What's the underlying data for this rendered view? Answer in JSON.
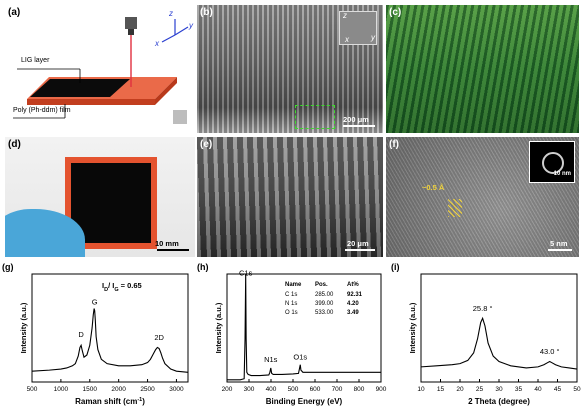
{
  "figure": {
    "panels": {
      "a": {
        "label": "(a)",
        "lig_label": "LIG layer",
        "film_label": "Poly (Ph-ddm) film",
        "axes": {
          "z": "z",
          "y": "y",
          "x": "x"
        },
        "colors": {
          "film": "#e4532f",
          "lig": "#0b0b0b",
          "laser": "#e0303f"
        }
      },
      "b": {
        "label": "(b)",
        "scale": "200 μm",
        "inset_axes": {
          "z": "z",
          "y": "y",
          "x": "x"
        }
      },
      "c": {
        "label": "(c)"
      },
      "d": {
        "label": "(d)",
        "scale": "10 mm"
      },
      "e": {
        "label": "(e)",
        "scale": "20 μm"
      },
      "f": {
        "label": "(f)",
        "scale": "5 nm",
        "inset_scale": "10 nm",
        "spacing": "~0.5 Å"
      }
    }
  },
  "chart_data": [
    {
      "panel": "g",
      "label": "(g)",
      "type": "line",
      "xlabel": "Raman shift (cm",
      "xlabel_sup": "-1",
      "xlabel_end": ")",
      "ylabel": "Intensity (a.u.)",
      "xlim": [
        500,
        3200
      ],
      "ylim": [
        0,
        1
      ],
      "xticks": [
        "500",
        "1000",
        "1500",
        "2000",
        "2500",
        "3000"
      ],
      "xtick_values": [
        500,
        1000,
        1500,
        2000,
        2500,
        3000
      ],
      "ratio_text": {
        "prefix": "I",
        "sub1": "D",
        "mid": "/ I",
        "sub2": "G",
        "value": "= 0.65"
      },
      "peaks": [
        {
          "label": "D",
          "x": 1350,
          "y": 0.38
        },
        {
          "label": "G",
          "x": 1585,
          "y": 0.68
        },
        {
          "label": "2D",
          "x": 2700,
          "y": 0.35
        }
      ],
      "series": [
        {
          "x": [
            500,
            800,
            1000,
            1100,
            1200,
            1250,
            1300,
            1330,
            1350,
            1370,
            1400,
            1450,
            1500,
            1540,
            1560,
            1575,
            1585,
            1595,
            1610,
            1640,
            1700,
            1800,
            2000,
            2200,
            2400,
            2500,
            2550,
            2600,
            2640,
            2670,
            2700,
            2730,
            2760,
            2800,
            2900,
            3000,
            3200
          ],
          "y": [
            0.1,
            0.11,
            0.12,
            0.13,
            0.15,
            0.17,
            0.24,
            0.32,
            0.34,
            0.29,
            0.23,
            0.25,
            0.34,
            0.5,
            0.62,
            0.68,
            0.66,
            0.58,
            0.42,
            0.3,
            0.21,
            0.17,
            0.15,
            0.15,
            0.16,
            0.18,
            0.21,
            0.26,
            0.3,
            0.32,
            0.31,
            0.27,
            0.22,
            0.17,
            0.12,
            0.1,
            0.09
          ]
        }
      ]
    },
    {
      "panel": "h",
      "label": "(h)",
      "type": "line",
      "xlabel": "Binding Energy (eV)",
      "ylabel": "Intensity (a.u.)",
      "xlim": [
        200,
        900
      ],
      "ylim": [
        0,
        1
      ],
      "xticks": [
        "200",
        "300",
        "400",
        "500",
        "600",
        "700",
        "800",
        "900"
      ],
      "xtick_values": [
        200,
        300,
        400,
        500,
        600,
        700,
        800,
        900
      ],
      "peaks": [
        {
          "label": "C1s",
          "x": 285,
          "y": 0.95
        },
        {
          "label": "N1s",
          "x": 399,
          "y": 0.15
        },
        {
          "label": "O1s",
          "x": 533,
          "y": 0.17
        }
      ],
      "table": {
        "headers": [
          "Name",
          "Pos.",
          "At%"
        ],
        "rows": [
          [
            "C 1s",
            "285.00",
            "92.31"
          ],
          [
            "N 1s",
            "399.00",
            "4.20"
          ],
          [
            "O 1s",
            "533.00",
            "3.49"
          ]
        ]
      },
      "series": [
        {
          "x": [
            200,
            260,
            278,
            282,
            285,
            287,
            290,
            296,
            310,
            350,
            390,
            395,
            399,
            403,
            410,
            450,
            500,
            525,
            530,
            533,
            536,
            545,
            600,
            700,
            800,
            900
          ],
          "y": [
            0.02,
            0.02,
            0.03,
            0.4,
            1.0,
            0.4,
            0.09,
            0.07,
            0.06,
            0.06,
            0.065,
            0.09,
            0.13,
            0.08,
            0.07,
            0.07,
            0.075,
            0.08,
            0.13,
            0.16,
            0.11,
            0.09,
            0.09,
            0.09,
            0.09,
            0.09
          ]
        }
      ]
    },
    {
      "panel": "i",
      "label": "(i)",
      "type": "line",
      "xlabel": "2 Theta (degree)",
      "ylabel": "Intensity (a.u.)",
      "xlim": [
        10,
        50
      ],
      "ylim": [
        0,
        1
      ],
      "xticks": [
        "10",
        "15",
        "20",
        "25",
        "30",
        "35",
        "40",
        "45",
        "50"
      ],
      "xtick_values": [
        10,
        15,
        20,
        25,
        30,
        35,
        40,
        45,
        50
      ],
      "peaks": [
        {
          "label": "25.8 °",
          "x": 25.8,
          "y": 0.62
        },
        {
          "label": "43.0 °",
          "x": 43.0,
          "y": 0.22
        }
      ],
      "series": [
        {
          "x": [
            10,
            14,
            18,
            20,
            22,
            23.5,
            24.5,
            25.3,
            25.8,
            26.4,
            27.2,
            28.5,
            30,
            33,
            37,
            40,
            41.5,
            42.5,
            43,
            43.5,
            44.5,
            46,
            48,
            50
          ],
          "y": [
            0.14,
            0.15,
            0.16,
            0.17,
            0.2,
            0.27,
            0.4,
            0.55,
            0.59,
            0.52,
            0.36,
            0.24,
            0.19,
            0.15,
            0.13,
            0.14,
            0.16,
            0.18,
            0.19,
            0.18,
            0.16,
            0.14,
            0.13,
            0.12
          ]
        }
      ]
    }
  ]
}
